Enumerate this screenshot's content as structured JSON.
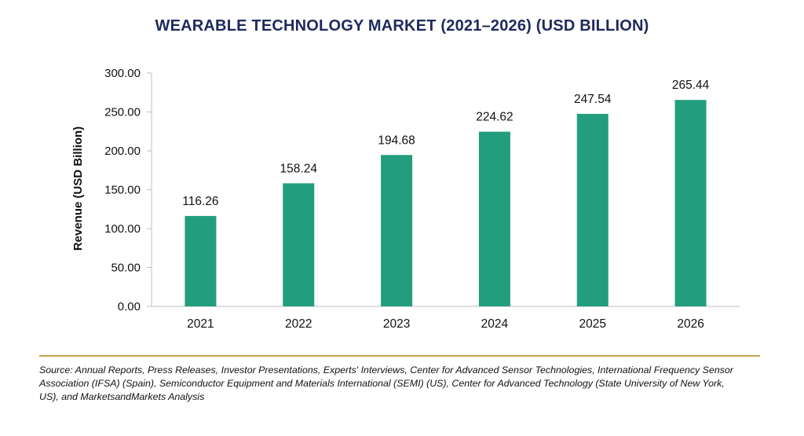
{
  "chart_data": {
    "type": "bar",
    "title": "WEARABLE TECHNOLOGY MARKET (2021–2026) (USD BILLION)",
    "xlabel": "",
    "ylabel": "Revenue (USD Billion)",
    "categories": [
      "2021",
      "2022",
      "2023",
      "2024",
      "2025",
      "2026"
    ],
    "values": [
      116.26,
      158.24,
      194.68,
      224.62,
      247.54,
      265.44
    ],
    "value_labels": [
      "116.26",
      "158.24",
      "194.68",
      "224.62",
      "247.54",
      "265.44"
    ],
    "ylim": [
      0,
      300
    ],
    "yticks": [
      0,
      50,
      100,
      150,
      200,
      250,
      300
    ],
    "ytick_labels": [
      "0.00",
      "50.00",
      "100.00",
      "150.00",
      "200.00",
      "250.00",
      "300.00"
    ],
    "bar_color": "#229e7f",
    "grid": false,
    "legend": "none"
  },
  "source_text": "Source: Annual Reports, Press Releases, Investor Presentations, Experts' Interviews, Center for Advanced Sensor Technologies, International Frequency Sensor Association (IFSA) (Spain), Semiconductor Equipment and Materials International (SEMI) (US), Center for Advanced Technology (State University of New York, US), and MarketsandMarkets Analysis",
  "colors": {
    "title": "#1d2a5c",
    "divider": "#c4a24e",
    "axis": "#bfbfbf"
  }
}
